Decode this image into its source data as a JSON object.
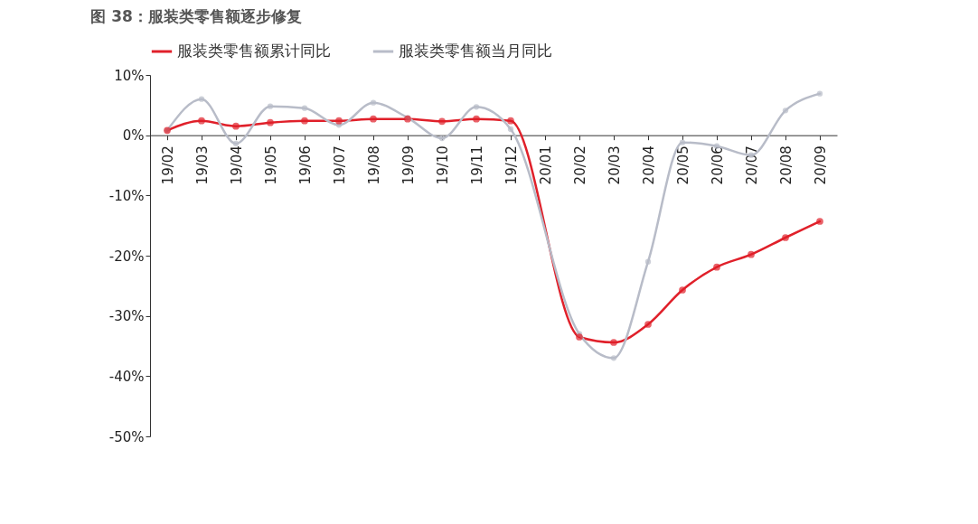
{
  "chart_data": {
    "type": "line",
    "title": "图 38：服装类零售额逐步修复",
    "categories": [
      "19/02",
      "19/03",
      "19/04",
      "19/05",
      "19/06",
      "19/07",
      "19/08",
      "19/09",
      "19/10",
      "19/11",
      "19/12",
      "20/01",
      "20/02",
      "20/03",
      "20/04",
      "20/05",
      "20/06",
      "20/07",
      "20/08",
      "20/09"
    ],
    "series": [
      {
        "name": "服装类零售额累计同比",
        "color": "#e0202a",
        "values": [
          0.8,
          2.4,
          1.5,
          2.1,
          2.4,
          2.4,
          2.7,
          2.7,
          2.3,
          2.7,
          2.4,
          null,
          -33.5,
          -34.4,
          -31.4,
          -25.7,
          -21.9,
          -19.8,
          -17.0,
          -14.3
        ]
      },
      {
        "name": "服装类零售额当月同比",
        "color": "#b8bcc8",
        "values": [
          0.8,
          6.0,
          -1.4,
          4.8,
          4.5,
          1.7,
          5.4,
          2.9,
          -0.5,
          4.7,
          1.0,
          null,
          -33.0,
          -37.0,
          -21.0,
          -1.2,
          -1.8,
          -3.3,
          4.1,
          6.9
        ]
      }
    ],
    "ylim": [
      -50,
      10
    ],
    "yticks": [
      {
        "value": -50,
        "label": "-50%"
      },
      {
        "value": -40,
        "label": "-40%"
      },
      {
        "value": -30,
        "label": "-30%"
      },
      {
        "value": -20,
        "label": "-20%"
      },
      {
        "value": -10,
        "label": "-10%"
      },
      {
        "value": 0,
        "label": "0%"
      },
      {
        "value": 10,
        "label": "10%"
      }
    ],
    "grid": false,
    "legend": "top",
    "marker": "circle",
    "line_style": "solid"
  }
}
